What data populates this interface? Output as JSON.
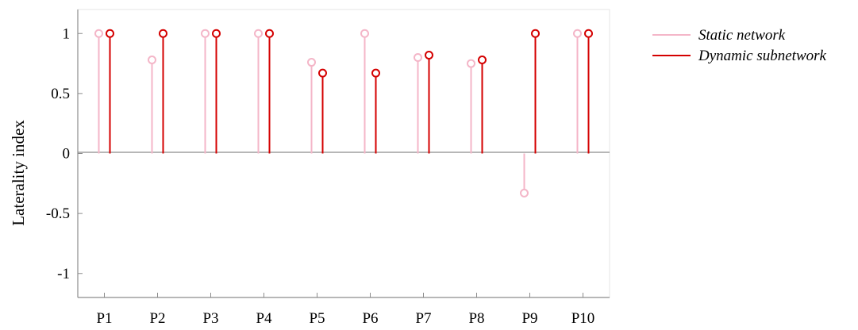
{
  "chart_data": {
    "type": "stem",
    "categories": [
      "P1",
      "P2",
      "P3",
      "P4",
      "P5",
      "P6",
      "P7",
      "P8",
      "P9",
      "P10"
    ],
    "series": [
      {
        "name": "Static network",
        "color": "#f4b6c8",
        "values": [
          1,
          0.78,
          1,
          1,
          0.76,
          1,
          0.8,
          0.75,
          -0.33,
          1
        ]
      },
      {
        "name": "Dynamic subnetwork",
        "color": "#d40000",
        "values": [
          1,
          1,
          1,
          1,
          0.67,
          0.67,
          0.82,
          0.78,
          1,
          1
        ]
      }
    ],
    "ylabel": "Laterality index",
    "xlabel": "",
    "ylim": [
      -1.2,
      1.2
    ],
    "yticks": [
      -1,
      -0.5,
      0,
      0.5,
      1
    ],
    "ytick_labels": [
      "-1",
      "-0.5",
      "0",
      "0.5",
      "1"
    ],
    "baseline": 0,
    "grid": false,
    "legend_position": "top-right"
  }
}
